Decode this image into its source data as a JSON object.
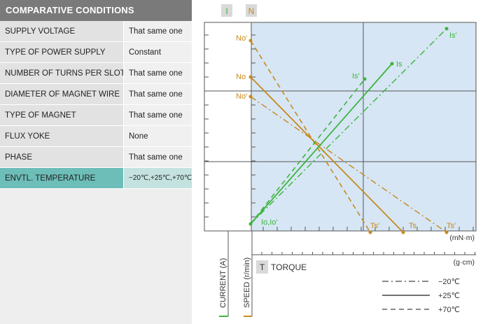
{
  "panel": {
    "title": "COMPARATIVE CONDITIONS",
    "rows": [
      {
        "label": "SUPPLY VOLTAGE",
        "value": "That same one"
      },
      {
        "label": "TYPE OF POWER SUPPLY",
        "value": "Constant"
      },
      {
        "label": "NUMBER OF TURNS PER SLOT",
        "value": "That same one"
      },
      {
        "label": "DIAMETER OF MAGNET WIRE",
        "value": "That same one"
      },
      {
        "label": "TYPE OF MAGNET",
        "value": "That same one"
      },
      {
        "label": "FLUX YOKE",
        "value": "None"
      },
      {
        "label": "PHASE",
        "value": "That same one"
      },
      {
        "label": "ENVTL. TEMPERATURE",
        "value": "−20℃,+25℃,+70℃",
        "highlight": true
      }
    ]
  },
  "diagram": {
    "badge_current": "I",
    "badge_speed": "N",
    "badge_torque": "T",
    "torque_label": "TORQUE",
    "unit_top": "(mN·m)",
    "unit_bottom": "(g·cm)",
    "axis_current": "CURRENT (A)",
    "axis_speed": "SPEED (r/min)",
    "label_no_hot": "No′",
    "label_no": "No",
    "label_no_cold": "No′",
    "label_io": "Io,Io′",
    "label_is_hot": "Is′",
    "label_is": "Is",
    "label_is_cold": "Is′",
    "label_ts_hot": "Ts′",
    "label_ts": "Ts",
    "label_ts_cold": "Ts′",
    "legend": [
      {
        "style": "dashdot",
        "label": "−20℃"
      },
      {
        "style": "solid",
        "label": "+25℃"
      },
      {
        "style": "dashed",
        "label": "+70℃"
      }
    ]
  },
  "colors": {
    "current": "#3cb43c",
    "speed": "#c8891e",
    "plot_bg": "#d6e6f4",
    "badge_bg": "#d9d9d9",
    "title_bg": "#7a7a7a",
    "highlight_key": "#6dbdb8",
    "highlight_value": "#c4e2df"
  }
}
